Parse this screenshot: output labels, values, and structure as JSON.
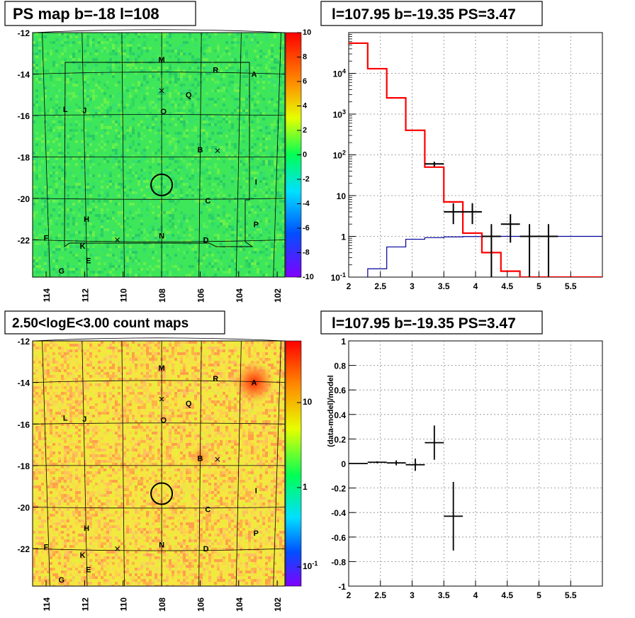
{
  "panels": {
    "tl_title": "PS map b=-18 l=108",
    "tr_title": "l=107.95 b=-19.35 PS=3.47",
    "bl_title": "2.50<logE<3.00 count maps",
    "br_title": "l=107.95 b=-19.35 PS=3.47"
  },
  "chart_data": [
    {
      "type": "heatmap",
      "name_ref": "tl",
      "x_ticks": [
        "114",
        "112",
        "110",
        "108",
        "106",
        "104",
        "102"
      ],
      "y_ticks": [
        "-12",
        "-14",
        "-16",
        "-18",
        "-20",
        "-22"
      ],
      "colorbar_ticks": [
        "10",
        "8",
        "6",
        "4",
        "2",
        "0",
        "-2",
        "-4",
        "-6",
        "-8",
        "-10"
      ],
      "colorbar_range": [
        -10,
        10
      ],
      "dominant_value": 0,
      "circle_center": [
        108,
        -19.35
      ],
      "sources": [
        {
          "label": "M",
          "l": 108.0,
          "b": -13.3
        },
        {
          "label": "R",
          "l": 105.2,
          "b": -13.8
        },
        {
          "label": "A",
          "l": 103.2,
          "b": -14.0
        },
        {
          "label": "Q",
          "l": 106.6,
          "b": -15.0
        },
        {
          "label": "L",
          "l": 113.0,
          "b": -15.7
        },
        {
          "label": "J",
          "l": 112.0,
          "b": -15.75
        },
        {
          "label": "O",
          "l": 107.9,
          "b": -15.8
        },
        {
          "label": "B",
          "l": 106.0,
          "b": -17.65
        },
        {
          "label": "I",
          "l": 103.1,
          "b": -19.2
        },
        {
          "label": "C",
          "l": 105.6,
          "b": -20.1
        },
        {
          "label": "H",
          "l": 111.9,
          "b": -21.0
        },
        {
          "label": "P",
          "l": 103.1,
          "b": -21.25
        },
        {
          "label": "F",
          "l": 114.0,
          "b": -21.9
        },
        {
          "label": "N",
          "l": 108.0,
          "b": -21.8
        },
        {
          "label": "D",
          "l": 105.7,
          "b": -22.0
        },
        {
          "label": "K",
          "l": 112.1,
          "b": -22.3
        },
        {
          "label": "E",
          "l": 111.8,
          "b": -23.0
        },
        {
          "label": "G",
          "l": 113.2,
          "b": -23.5
        }
      ],
      "crosses": [
        {
          "l": 108.0,
          "b": -14.8
        },
        {
          "l": 105.1,
          "b": -17.7
        },
        {
          "l": 110.3,
          "b": -22.0
        }
      ]
    },
    {
      "type": "line",
      "name_ref": "tr",
      "xlim": [
        2,
        6
      ],
      "ylim": [
        0.1,
        100000
      ],
      "y_scale": "log",
      "x_ticks": [
        "2",
        "2.5",
        "3",
        "3.5",
        "4",
        "4.5",
        "5",
        "5.5"
      ],
      "y_ticks": [
        "10^-1",
        "1",
        "10",
        "10^2",
        "10^3",
        "10^4"
      ],
      "model_total": {
        "color": "#ff0000",
        "bins": [
          [
            2.0,
            2.3,
            55000
          ],
          [
            2.3,
            2.6,
            13000
          ],
          [
            2.6,
            2.9,
            2500
          ],
          [
            2.9,
            3.2,
            400
          ],
          [
            3.2,
            3.5,
            50
          ],
          [
            3.5,
            3.8,
            7
          ],
          [
            3.8,
            4.1,
            1.2
          ],
          [
            4.1,
            4.4,
            0.4
          ],
          [
            4.4,
            4.7,
            0.14
          ],
          [
            4.7,
            6.0,
            0.1
          ]
        ]
      },
      "model_source": {
        "color": "#000099",
        "bins": [
          [
            2.0,
            2.3,
            0.06
          ],
          [
            2.3,
            2.6,
            0.16
          ],
          [
            2.6,
            2.9,
            0.55
          ],
          [
            2.9,
            3.2,
            0.85
          ],
          [
            3.2,
            3.5,
            0.93
          ],
          [
            3.5,
            3.8,
            0.97
          ],
          [
            3.8,
            4.1,
            0.99
          ],
          [
            4.1,
            4.4,
            1.0
          ],
          [
            4.4,
            4.7,
            1.0
          ],
          [
            4.7,
            6.0,
            1.0
          ]
        ]
      },
      "data_points": [
        {
          "x": 3.35,
          "y": 60,
          "lo": 52,
          "hi": 68,
          "xerr": 0.15
        },
        {
          "x": 3.65,
          "y": 4,
          "lo": 2,
          "hi": 6.5,
          "xerr": 0.15
        },
        {
          "x": 3.95,
          "y": 4,
          "lo": 2,
          "hi": 6.5,
          "xerr": 0.15
        },
        {
          "x": 4.25,
          "y": 1,
          "lo": 0.1,
          "hi": 2,
          "xerr": 0.15
        },
        {
          "x": 4.55,
          "y": 2,
          "lo": 0.7,
          "hi": 3.5,
          "xerr": 0.15
        },
        {
          "x": 4.85,
          "y": 1,
          "lo": 0.1,
          "hi": 2,
          "xerr": 0.15
        },
        {
          "x": 5.15,
          "y": 1,
          "lo": 0.1,
          "hi": 2,
          "xerr": 0.15
        }
      ]
    },
    {
      "type": "heatmap",
      "name_ref": "bl",
      "x_ticks": [
        "114",
        "112",
        "110",
        "108",
        "106",
        "104",
        "102"
      ],
      "y_ticks": [
        "-12",
        "-14",
        "-16",
        "-18",
        "-20",
        "-22"
      ],
      "colorbar_ticks": [
        "10",
        "1",
        "10^-1"
      ],
      "colorbar_scale": "log",
      "bright_spots": [
        {
          "label": "A",
          "l": 103.2,
          "b": -14.0,
          "strength": 1.0
        },
        {
          "label": "B",
          "l": 106.0,
          "b": -17.6,
          "strength": 0.6
        }
      ]
    },
    {
      "type": "scatter",
      "name_ref": "br",
      "ylabel": "(data-model)/model",
      "xlim": [
        2,
        6
      ],
      "ylim": [
        -1,
        1
      ],
      "x_ticks": [
        "2",
        "2.5",
        "3",
        "3.5",
        "4",
        "4.5",
        "5",
        "5.5"
      ],
      "y_ticks": [
        "1",
        "0.8",
        "0.6",
        "0.4",
        "0.2",
        "0",
        "-0.2",
        "-0.4",
        "-0.6",
        "-0.8",
        "-1"
      ],
      "points": [
        {
          "x": 2.15,
          "y": 0.0,
          "err": 0.005,
          "xerr": 0.15
        },
        {
          "x": 2.45,
          "y": 0.01,
          "err": 0.008,
          "xerr": 0.15
        },
        {
          "x": 2.75,
          "y": 0.005,
          "err": 0.02,
          "xerr": 0.15
        },
        {
          "x": 3.05,
          "y": -0.01,
          "err": 0.05,
          "xerr": 0.15
        },
        {
          "x": 3.35,
          "y": 0.17,
          "err": 0.14,
          "xerr": 0.15
        },
        {
          "x": 3.65,
          "y": -0.43,
          "err": 0.28,
          "xerr": 0.15
        }
      ]
    }
  ]
}
